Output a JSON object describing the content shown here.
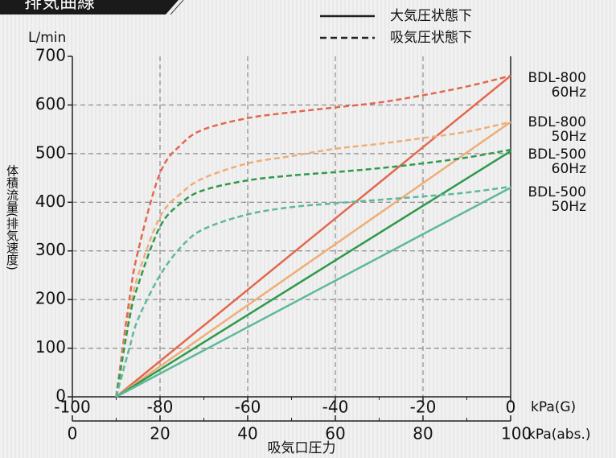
{
  "chart_data": {
    "type": "line",
    "title": "排気曲線",
    "y_unit": "L/min",
    "y_axis_label": "体積流量(排気速度)",
    "x_axis_label": "吸気口圧力",
    "x_unit": "kPa(G)",
    "x2_unit": "kPa(abs.)",
    "xlim": [
      -100,
      0
    ],
    "xticks": [
      -100,
      -80,
      -60,
      -40,
      -20,
      0
    ],
    "x2lim": [
      0,
      100
    ],
    "x2ticks": [
      0,
      20,
      40,
      60,
      80,
      100
    ],
    "ylim": [
      0,
      700
    ],
    "yticks": [
      0,
      100,
      200,
      300,
      400,
      500,
      600,
      700
    ],
    "grid": true,
    "legend": [
      {
        "label": "大気圧状態下",
        "style": "solid"
      },
      {
        "label": "吸気圧状態下",
        "style": "dashed"
      }
    ],
    "groups": [
      {
        "model": "BDL-800",
        "freq": "60Hz",
        "color": "#e2684f"
      },
      {
        "model": "BDL-800",
        "freq": "50Hz",
        "color": "#eeae78"
      },
      {
        "model": "BDL-500",
        "freq": "60Hz",
        "color": "#2f9a4b"
      },
      {
        "model": "BDL-500",
        "freq": "50Hz",
        "color": "#5db99a"
      }
    ],
    "series": [
      {
        "group": 0,
        "style": "solid",
        "x": [
          -90,
          0
        ],
        "values": [
          0,
          660
        ]
      },
      {
        "group": 1,
        "style": "solid",
        "x": [
          -90,
          0
        ],
        "values": [
          0,
          565
        ]
      },
      {
        "group": 2,
        "style": "solid",
        "x": [
          -90,
          0
        ],
        "values": [
          0,
          505
        ]
      },
      {
        "group": 3,
        "style": "solid",
        "x": [
          -90,
          0
        ],
        "values": [
          0,
          430
        ]
      },
      {
        "group": 0,
        "style": "dashed",
        "x": [
          -90,
          -87,
          -85,
          -80,
          -75,
          -70,
          -60,
          -50,
          -40,
          -30,
          -20,
          -10,
          0
        ],
        "values": [
          0,
          200,
          300,
          460,
          520,
          550,
          573,
          585,
          595,
          605,
          620,
          638,
          660
        ]
      },
      {
        "group": 1,
        "style": "dashed",
        "x": [
          -90,
          -87,
          -85,
          -80,
          -75,
          -70,
          -60,
          -50,
          -40,
          -30,
          -20,
          -10,
          0
        ],
        "values": [
          0,
          170,
          250,
          370,
          420,
          450,
          480,
          495,
          510,
          520,
          532,
          545,
          565
        ]
      },
      {
        "group": 2,
        "style": "dashed",
        "x": [
          -90,
          -87,
          -85,
          -80,
          -75,
          -70,
          -60,
          -50,
          -40,
          -30,
          -20,
          -10,
          0
        ],
        "values": [
          0,
          160,
          230,
          350,
          400,
          425,
          445,
          455,
          462,
          470,
          480,
          492,
          508
        ]
      },
      {
        "group": 3,
        "style": "dashed",
        "x": [
          -90,
          -87,
          -85,
          -80,
          -75,
          -70,
          -60,
          -50,
          -40,
          -30,
          -20,
          -10,
          0
        ],
        "values": [
          0,
          100,
          160,
          250,
          310,
          345,
          375,
          390,
          398,
          405,
          412,
          420,
          432
        ]
      }
    ]
  }
}
